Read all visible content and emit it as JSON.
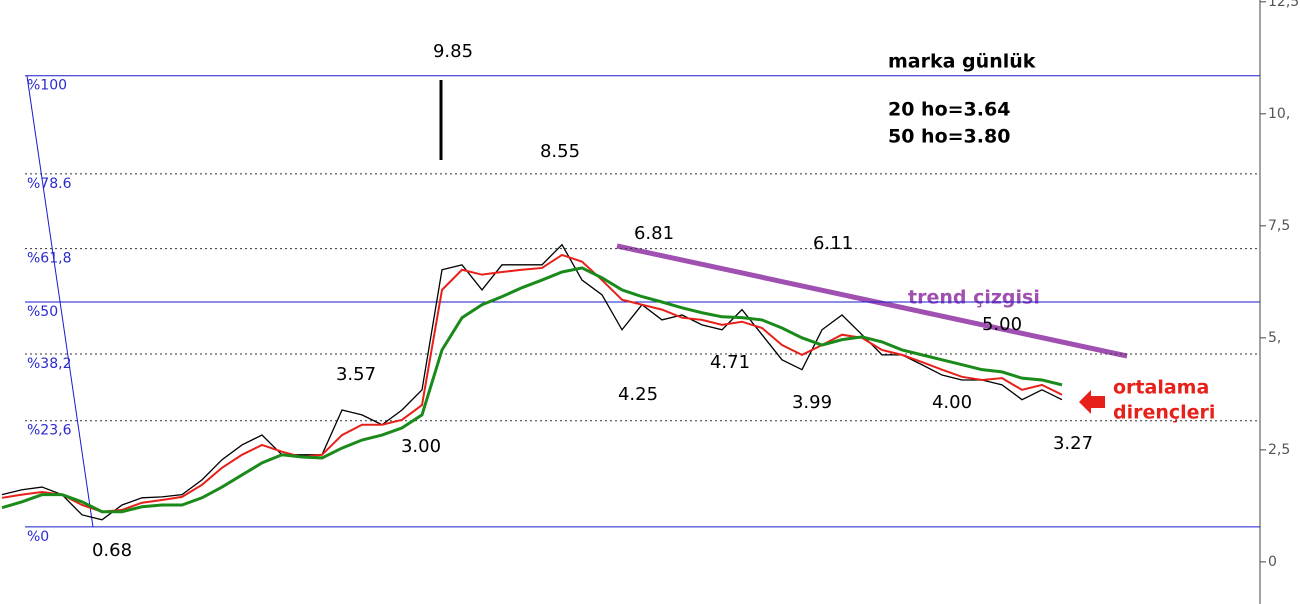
{
  "chart_data": {
    "type": "line",
    "ylim": [
      -0.94,
      12.54
    ],
    "yticks": [
      0,
      {
        "value": 2.5,
        "label": "2,5"
      },
      {
        "value": 5,
        "label": "5,"
      },
      {
        "value": 7.5,
        "label": "7,5"
      },
      {
        "value": 10,
        "label": "10,"
      },
      {
        "value": 12.5,
        "label": "12,5"
      }
    ],
    "series": [
      {
        "color": "#000000",
        "values": [
          1.5,
          1.61,
          1.67,
          1.5,
          1.05,
          0.94,
          1.27,
          1.43,
          1.45,
          1.5,
          1.83,
          2.28,
          2.61,
          2.83,
          2.39,
          2.39,
          2.39,
          3.39,
          3.28,
          3.06,
          3.39,
          3.84,
          6.52,
          6.63,
          6.07,
          6.63,
          6.63,
          6.63,
          7.08,
          6.29,
          5.96,
          5.18,
          5.74,
          5.4,
          5.51,
          5.29,
          5.18,
          5.63,
          5.07,
          4.51,
          4.29,
          5.18,
          5.51,
          5.07,
          4.62,
          4.62,
          4.4,
          4.17,
          4.06,
          4.06,
          3.95,
          3.62,
          3.84,
          3.62
        ]
      },
      {
        "color": "#e8201a",
        "values": [
          1.43,
          1.5,
          1.56,
          1.5,
          1.27,
          1.12,
          1.16,
          1.32,
          1.38,
          1.45,
          1.72,
          2.1,
          2.39,
          2.61,
          2.46,
          2.34,
          2.39,
          2.83,
          3.06,
          3.06,
          3.17,
          3.5,
          6.07,
          6.52,
          6.41,
          6.47,
          6.52,
          6.56,
          6.85,
          6.7,
          6.29,
          5.85,
          5.74,
          5.63,
          5.45,
          5.4,
          5.29,
          5.36,
          5.22,
          4.84,
          4.62,
          4.84,
          5.07,
          5.0,
          4.73,
          4.62,
          4.46,
          4.29,
          4.13,
          4.06,
          4.1,
          3.84,
          3.95,
          3.73
        ]
      },
      {
        "color": "#1a8a1a",
        "values": [
          1.21,
          1.34,
          1.5,
          1.5,
          1.34,
          1.12,
          1.12,
          1.23,
          1.27,
          1.27,
          1.43,
          1.67,
          1.94,
          2.21,
          2.39,
          2.34,
          2.32,
          2.54,
          2.72,
          2.83,
          2.99,
          3.28,
          4.73,
          5.45,
          5.74,
          5.92,
          6.12,
          6.29,
          6.47,
          6.56,
          6.34,
          6.07,
          5.92,
          5.8,
          5.67,
          5.56,
          5.47,
          5.45,
          5.4,
          5.22,
          5.0,
          4.84,
          4.96,
          5.02,
          4.91,
          4.73,
          4.62,
          4.51,
          4.4,
          4.29,
          4.24,
          4.1,
          4.06,
          3.95
        ]
      }
    ],
    "levels": [
      {
        "label": "%100",
        "value": 10.85,
        "color": "#1a1acd",
        "style": "solid"
      },
      {
        "label": "%78.6",
        "value": 8.66,
        "color": "#333333",
        "style": "dotted"
      },
      {
        "label": "%61,8",
        "value": 6.99,
        "color": "#333333",
        "style": "dotted"
      },
      {
        "label": "%50",
        "value": 5.8,
        "color": "#1a1acd",
        "style": "solid"
      },
      {
        "label": "%38,2",
        "value": 4.64,
        "color": "#333333",
        "style": "dotted"
      },
      {
        "label": "%23,6",
        "value": 3.15,
        "color": "#333333",
        "style": "dotted"
      },
      {
        "label": "%0",
        "value": 0.78,
        "color": "#1a1acd",
        "style": "solid"
      }
    ],
    "annotations": [
      "9.85",
      "8.55",
      "6.81",
      "6.11",
      "5.00",
      "3.57",
      "3.00",
      "4.25",
      "4.71",
      "3.99",
      "4.00",
      "3.27",
      "0.68"
    ],
    "title": "marka günlük",
    "notes": [
      "20 ho=3.64",
      "50 ho=3.80"
    ],
    "trend_label": "trend çizgisi",
    "resistance_label": [
      "ortalama",
      "dirençleri"
    ]
  }
}
